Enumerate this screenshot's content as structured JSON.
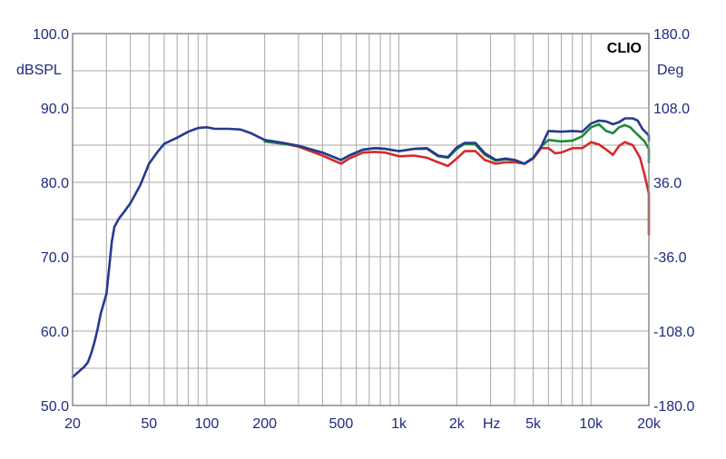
{
  "brand": "CLIO",
  "chart_data": {
    "type": "line",
    "x_scale": "log",
    "xlim": [
      20,
      20000
    ],
    "ylim": [
      50,
      100
    ],
    "y2lim": [
      -180,
      180
    ],
    "grid": true,
    "ylabel": "dBSPL",
    "y2label": "Deg",
    "xunit": "Hz",
    "x_ticks": [
      {
        "value": 20,
        "label": "20"
      },
      {
        "value": 50,
        "label": "50"
      },
      {
        "value": 100,
        "label": "100"
      },
      {
        "value": 200,
        "label": "200"
      },
      {
        "value": 500,
        "label": "500"
      },
      {
        "value": 1000,
        "label": "1k"
      },
      {
        "value": 2000,
        "label": "2k"
      },
      {
        "value": 5000,
        "label": "5k"
      },
      {
        "value": 10000,
        "label": "10k"
      },
      {
        "value": 20000,
        "label": "20k"
      }
    ],
    "y_ticks": [
      {
        "value": 50,
        "label": "50.0"
      },
      {
        "value": 60,
        "label": "60.0"
      },
      {
        "value": 70,
        "label": "70.0"
      },
      {
        "value": 80,
        "label": "80.0"
      },
      {
        "value": 90,
        "label": "90.0"
      },
      {
        "value": 100,
        "label": "100.0"
      }
    ],
    "y2_ticks": [
      {
        "value": -180,
        "label": "-180.0"
      },
      {
        "value": -108,
        "label": "-108.0"
      },
      {
        "value": -36,
        "label": "-36.0"
      },
      {
        "value": 36,
        "label": "36.0"
      },
      {
        "value": 108,
        "label": "108.0"
      },
      {
        "value": 180,
        "label": "180.0"
      }
    ],
    "series": [
      {
        "color": "#d42a2a",
        "points": [
          [
            200,
            85.5
          ],
          [
            250,
            85.2
          ],
          [
            300,
            84.8
          ],
          [
            400,
            83.6
          ],
          [
            500,
            82.5
          ],
          [
            550,
            83.2
          ],
          [
            650,
            84.0
          ],
          [
            750,
            84.1
          ],
          [
            850,
            84.0
          ],
          [
            1000,
            83.5
          ],
          [
            1200,
            83.6
          ],
          [
            1400,
            83.3
          ],
          [
            1600,
            82.7
          ],
          [
            1800,
            82.2
          ],
          [
            2000,
            83.2
          ],
          [
            2200,
            84.2
          ],
          [
            2500,
            84.2
          ],
          [
            2800,
            83.0
          ],
          [
            3200,
            82.5
          ],
          [
            3600,
            82.7
          ],
          [
            4000,
            82.7
          ],
          [
            4500,
            82.5
          ],
          [
            5000,
            83.2
          ],
          [
            5500,
            84.6
          ],
          [
            6000,
            84.6
          ],
          [
            6500,
            83.9
          ],
          [
            7000,
            84.0
          ],
          [
            8000,
            84.6
          ],
          [
            9000,
            84.6
          ],
          [
            10000,
            85.4
          ],
          [
            11000,
            85.1
          ],
          [
            12000,
            84.4
          ],
          [
            13000,
            83.7
          ],
          [
            14000,
            84.9
          ],
          [
            15000,
            85.4
          ],
          [
            16500,
            85.0
          ],
          [
            18000,
            83.3
          ],
          [
            19000,
            81.0
          ],
          [
            20000,
            78.5
          ],
          [
            21000,
            75.5
          ],
          [
            22000,
            73.0
          ]
        ]
      },
      {
        "color": "#1e8a3a",
        "points": [
          [
            200,
            85.5
          ],
          [
            250,
            85.2
          ],
          [
            300,
            84.9
          ],
          [
            400,
            84.0
          ],
          [
            500,
            83.0
          ],
          [
            550,
            83.6
          ],
          [
            650,
            84.4
          ],
          [
            750,
            84.6
          ],
          [
            850,
            84.5
          ],
          [
            1000,
            84.2
          ],
          [
            1200,
            84.5
          ],
          [
            1400,
            84.5
          ],
          [
            1600,
            83.5
          ],
          [
            1800,
            83.3
          ],
          [
            2000,
            84.5
          ],
          [
            2200,
            85.2
          ],
          [
            2500,
            85.1
          ],
          [
            2800,
            83.7
          ],
          [
            3200,
            82.9
          ],
          [
            3600,
            83.1
          ],
          [
            4000,
            83.0
          ],
          [
            4500,
            82.5
          ],
          [
            5000,
            83.3
          ],
          [
            5500,
            84.8
          ],
          [
            6000,
            85.7
          ],
          [
            7000,
            85.5
          ],
          [
            8000,
            85.6
          ],
          [
            9000,
            86.2
          ],
          [
            10000,
            87.4
          ],
          [
            11000,
            87.8
          ],
          [
            12000,
            86.9
          ],
          [
            13000,
            86.6
          ],
          [
            14000,
            87.4
          ],
          [
            15000,
            87.7
          ],
          [
            16000,
            87.4
          ],
          [
            17000,
            86.7
          ],
          [
            18000,
            86.1
          ],
          [
            19000,
            85.5
          ],
          [
            20000,
            84.5
          ],
          [
            21000,
            83.3
          ],
          [
            22000,
            82.7
          ]
        ]
      },
      {
        "color": "#253a8f",
        "points": [
          [
            20,
            53.8
          ],
          [
            21,
            54.3
          ],
          [
            23,
            55.2
          ],
          [
            24,
            55.8
          ],
          [
            25,
            57.0
          ],
          [
            26,
            58.5
          ],
          [
            27,
            60.3
          ],
          [
            28,
            62.3
          ],
          [
            30,
            65.0
          ],
          [
            31,
            68.5
          ],
          [
            32,
            72.0
          ],
          [
            33,
            74.0
          ],
          [
            35,
            75.2
          ],
          [
            37,
            76.0
          ],
          [
            40,
            77.2
          ],
          [
            45,
            79.6
          ],
          [
            50,
            82.5
          ],
          [
            55,
            84.0
          ],
          [
            60,
            85.2
          ],
          [
            70,
            86.0
          ],
          [
            80,
            86.8
          ],
          [
            90,
            87.3
          ],
          [
            100,
            87.4
          ],
          [
            110,
            87.2
          ],
          [
            130,
            87.2
          ],
          [
            150,
            87.1
          ],
          [
            170,
            86.6
          ],
          [
            200,
            85.7
          ],
          [
            250,
            85.3
          ],
          [
            300,
            84.9
          ],
          [
            400,
            84.0
          ],
          [
            500,
            83.0
          ],
          [
            550,
            83.6
          ],
          [
            650,
            84.4
          ],
          [
            750,
            84.6
          ],
          [
            850,
            84.5
          ],
          [
            1000,
            84.2
          ],
          [
            1200,
            84.5
          ],
          [
            1400,
            84.6
          ],
          [
            1600,
            83.6
          ],
          [
            1800,
            83.4
          ],
          [
            2000,
            84.7
          ],
          [
            2200,
            85.3
          ],
          [
            2500,
            85.3
          ],
          [
            2800,
            83.9
          ],
          [
            3200,
            83.0
          ],
          [
            3600,
            83.2
          ],
          [
            4000,
            83.0
          ],
          [
            4500,
            82.5
          ],
          [
            5000,
            83.3
          ],
          [
            5500,
            84.8
          ],
          [
            6000,
            86.9
          ],
          [
            7000,
            86.8
          ],
          [
            8000,
            86.9
          ],
          [
            9000,
            86.8
          ],
          [
            10000,
            87.9
          ],
          [
            11000,
            88.3
          ],
          [
            12000,
            88.2
          ],
          [
            13000,
            87.8
          ],
          [
            14000,
            88.1
          ],
          [
            15000,
            88.6
          ],
          [
            16500,
            88.6
          ],
          [
            17500,
            88.3
          ],
          [
            18500,
            87.2
          ],
          [
            20000,
            86.3
          ],
          [
            22000,
            85.6
          ]
        ]
      }
    ]
  }
}
